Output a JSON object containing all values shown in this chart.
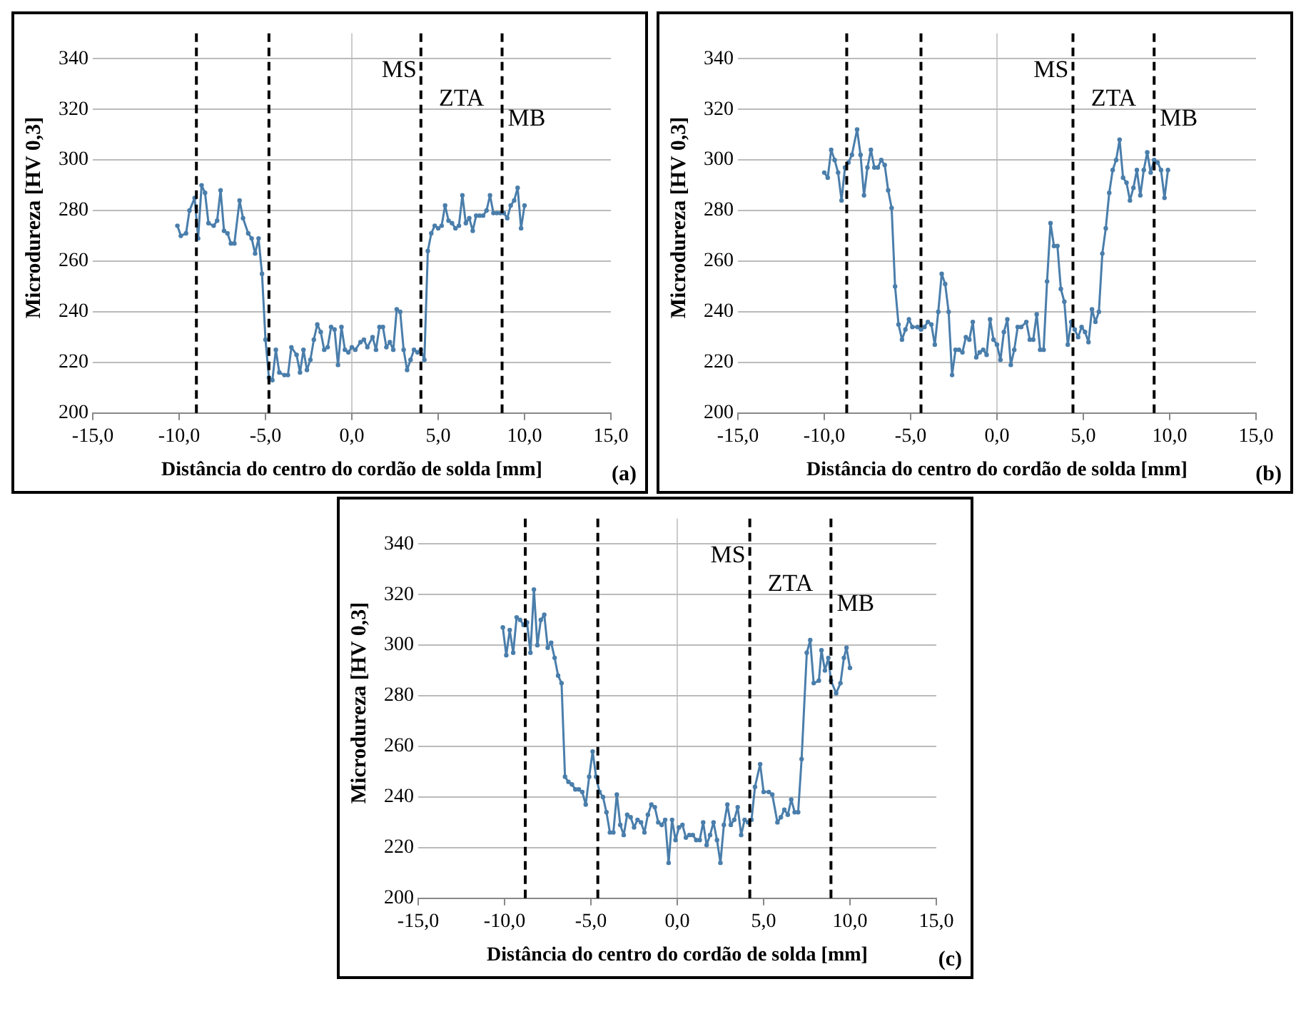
{
  "chart_data": [
    {
      "type": "line",
      "xlabel": "Distância do centro do cordão de solda [mm]",
      "ylabel": "Microdureza [HV 0,3]",
      "xlim": [
        -15,
        15
      ],
      "xticks": [
        {
          "value": -15,
          "label": "-15,0"
        },
        {
          "value": -10,
          "label": "-10,0"
        },
        {
          "value": -5,
          "label": "-5,0"
        },
        {
          "value": 0,
          "label": "0,0"
        },
        {
          "value": 5,
          "label": "5,0"
        },
        {
          "value": 10,
          "label": "10,0"
        },
        {
          "value": 15,
          "label": "15,0"
        }
      ],
      "ylim": [
        200,
        350
      ],
      "yticks": [
        200,
        220,
        240,
        260,
        280,
        300,
        320,
        340
      ],
      "grid": "y",
      "legend": false,
      "marker": "circle",
      "line_style": "solid",
      "ref_lines": [
        {
          "axis": "x",
          "value": -9.0,
          "color": "#000000",
          "line_style": "dashed"
        },
        {
          "axis": "x",
          "value": -4.8,
          "color": "#000000",
          "line_style": "dashed"
        },
        {
          "axis": "x",
          "value": 4.0,
          "color": "#000000",
          "line_style": "dashed"
        },
        {
          "axis": "x",
          "value": 8.7,
          "color": "#000000",
          "line_style": "dashed"
        }
      ],
      "annotations": [
        "MS",
        "ZTA",
        "MB",
        "(a)"
      ],
      "series": [
        {
          "color": "#4a7eab",
          "x": [
            -10.1,
            -9.9,
            -9.6,
            -9.4,
            -9.1,
            -8.9,
            -8.7,
            -8.5,
            -8.3,
            -8.0,
            -7.8,
            -7.6,
            -7.4,
            -7.2,
            -7.0,
            -6.8,
            -6.5,
            -6.3,
            -6.0,
            -5.8,
            -5.6,
            -5.4,
            -5.2,
            -5.0,
            -4.8,
            -4.6,
            -4.4,
            -4.2,
            -3.9,
            -3.7,
            -3.5,
            -3.2,
            -3.0,
            -2.8,
            -2.6,
            -2.4,
            -2.2,
            -2.0,
            -1.8,
            -1.6,
            -1.4,
            -1.2,
            -1.0,
            -0.8,
            -0.6,
            -0.4,
            -0.2,
            0.0,
            0.2,
            0.5,
            0.7,
            0.9,
            1.2,
            1.4,
            1.6,
            1.8,
            2.0,
            2.2,
            2.4,
            2.6,
            2.8,
            3.0,
            3.2,
            3.4,
            3.6,
            3.8,
            4.0,
            4.2,
            4.4,
            4.6,
            4.8,
            5.0,
            5.2,
            5.4,
            5.6,
            5.8,
            6.0,
            6.2,
            6.4,
            6.6,
            6.8,
            7.0,
            7.2,
            7.4,
            7.6,
            7.8,
            8.0,
            8.2,
            8.4,
            8.6,
            8.8,
            9.0,
            9.2,
            9.4,
            9.6,
            9.8,
            10.0
          ],
          "values": [
            274,
            270,
            271,
            280,
            285,
            269,
            290,
            287,
            275,
            274,
            276,
            288,
            272,
            271,
            267,
            267,
            284,
            277,
            271,
            269,
            263,
            269,
            255,
            229,
            214,
            213,
            225,
            216,
            215,
            215,
            226,
            223,
            216,
            225,
            217,
            221,
            229,
            235,
            232,
            225,
            226,
            234,
            233,
            219,
            234,
            225,
            224,
            226,
            225,
            228,
            229,
            226,
            230,
            225,
            234,
            234,
            226,
            228,
            225,
            241,
            240,
            225,
            217,
            221,
            225,
            224,
            225,
            221,
            264,
            271,
            274,
            273,
            274,
            282,
            276,
            275,
            273,
            274,
            286,
            275,
            277,
            272,
            278,
            278,
            278,
            280,
            286,
            279,
            279,
            279,
            279,
            277,
            282,
            284,
            289,
            273,
            282
          ]
        }
      ]
    },
    {
      "type": "line",
      "xlabel": "Distância do centro do cordão de solda [mm]",
      "ylabel": "Microdureza [HV 0,3]",
      "xlim": [
        -15,
        15
      ],
      "xticks": [
        {
          "value": -15,
          "label": "-15,0"
        },
        {
          "value": -10,
          "label": "-10,0"
        },
        {
          "value": -5,
          "label": "-5,0"
        },
        {
          "value": 0,
          "label": "0,0"
        },
        {
          "value": 5,
          "label": "5,0"
        },
        {
          "value": 10,
          "label": "10,0"
        },
        {
          "value": 15,
          "label": "15,0"
        }
      ],
      "ylim": [
        200,
        350
      ],
      "yticks": [
        200,
        220,
        240,
        260,
        280,
        300,
        320,
        340
      ],
      "grid": "y",
      "legend": false,
      "marker": "circle",
      "line_style": "solid",
      "ref_lines": [
        {
          "axis": "x",
          "value": -8.7,
          "color": "#000000",
          "line_style": "dashed"
        },
        {
          "axis": "x",
          "value": -4.4,
          "color": "#000000",
          "line_style": "dashed"
        },
        {
          "axis": "x",
          "value": 4.4,
          "color": "#000000",
          "line_style": "dashed"
        },
        {
          "axis": "x",
          "value": 9.1,
          "color": "#000000",
          "line_style": "dashed"
        }
      ],
      "annotations": [
        "MS",
        "ZTA",
        "MB",
        "(b)"
      ],
      "series": [
        {
          "color": "#4a7eab",
          "x": [
            -10.0,
            -9.8,
            -9.6,
            -9.4,
            -9.2,
            -9.0,
            -8.8,
            -8.6,
            -8.4,
            -8.1,
            -7.9,
            -7.7,
            -7.5,
            -7.3,
            -7.1,
            -6.9,
            -6.7,
            -6.5,
            -6.3,
            -6.1,
            -5.9,
            -5.7,
            -5.5,
            -5.3,
            -5.1,
            -4.9,
            -4.6,
            -4.4,
            -4.2,
            -4.0,
            -3.8,
            -3.6,
            -3.4,
            -3.2,
            -3.0,
            -2.8,
            -2.6,
            -2.4,
            -2.2,
            -2.0,
            -1.8,
            -1.6,
            -1.4,
            -1.2,
            -1.0,
            -0.8,
            -0.6,
            -0.4,
            -0.2,
            0.0,
            0.2,
            0.4,
            0.6,
            0.8,
            1.0,
            1.2,
            1.4,
            1.7,
            1.9,
            2.1,
            2.3,
            2.5,
            2.7,
            2.9,
            3.1,
            3.3,
            3.5,
            3.7,
            3.9,
            4.1,
            4.3,
            4.5,
            4.7,
            4.9,
            5.1,
            5.3,
            5.5,
            5.7,
            5.9,
            6.1,
            6.3,
            6.5,
            6.7,
            6.9,
            7.1,
            7.3,
            7.5,
            7.7,
            7.9,
            8.1,
            8.3,
            8.5,
            8.7,
            8.9,
            9.1,
            9.3,
            9.5,
            9.7,
            9.9
          ],
          "values": [
            295,
            293,
            304,
            300,
            295,
            284,
            297,
            299,
            302,
            312,
            302,
            286,
            297,
            304,
            297,
            297,
            300,
            298,
            288,
            281,
            250,
            235,
            229,
            233,
            237,
            234,
            234,
            233,
            234,
            236,
            235,
            227,
            240,
            255,
            251,
            240,
            215,
            225,
            225,
            224,
            230,
            229,
            236,
            222,
            224,
            225,
            223,
            237,
            229,
            227,
            221,
            232,
            237,
            219,
            225,
            234,
            234,
            236,
            229,
            229,
            239,
            225,
            225,
            252,
            275,
            266,
            266,
            249,
            244,
            227,
            236,
            233,
            230,
            234,
            232,
            228,
            241,
            236,
            240,
            263,
            273,
            287,
            296,
            300,
            308,
            293,
            291,
            284,
            289,
            296,
            286,
            296,
            303,
            295,
            300,
            299,
            296,
            285,
            296
          ]
        }
      ]
    },
    {
      "type": "line",
      "xlabel": "Distância do centro do cordão de solda [mm]",
      "ylabel": "Microdureza [HV 0,3]",
      "xlim": [
        -15,
        15
      ],
      "xticks": [
        {
          "value": -15,
          "label": "-15,0"
        },
        {
          "value": -10,
          "label": "-10,0"
        },
        {
          "value": -5,
          "label": "-5,0"
        },
        {
          "value": 0,
          "label": "0,0"
        },
        {
          "value": 5,
          "label": "5,0"
        },
        {
          "value": 10,
          "label": "10,0"
        },
        {
          "value": 15,
          "label": "15,0"
        }
      ],
      "ylim": [
        200,
        350
      ],
      "yticks": [
        200,
        220,
        240,
        260,
        280,
        300,
        320,
        340
      ],
      "grid": "y",
      "legend": false,
      "marker": "circle",
      "line_style": "solid",
      "ref_lines": [
        {
          "axis": "x",
          "value": -8.8,
          "color": "#000000",
          "line_style": "dashed"
        },
        {
          "axis": "x",
          "value": -4.6,
          "color": "#000000",
          "line_style": "dashed"
        },
        {
          "axis": "x",
          "value": 4.2,
          "color": "#000000",
          "line_style": "dashed"
        },
        {
          "axis": "x",
          "value": 8.9,
          "color": "#000000",
          "line_style": "dashed"
        }
      ],
      "annotations": [
        "MS",
        "ZTA",
        "MB",
        "(c)"
      ],
      "series": [
        {
          "color": "#4a7eab",
          "x": [
            -10.1,
            -9.9,
            -9.7,
            -9.5,
            -9.3,
            -9.1,
            -8.9,
            -8.7,
            -8.5,
            -8.3,
            -8.1,
            -7.9,
            -7.7,
            -7.5,
            -7.3,
            -7.1,
            -6.9,
            -6.7,
            -6.5,
            -6.3,
            -6.1,
            -5.9,
            -5.7,
            -5.5,
            -5.3,
            -5.1,
            -4.9,
            -4.7,
            -4.5,
            -4.3,
            -4.1,
            -3.9,
            -3.7,
            -3.5,
            -3.3,
            -3.1,
            -2.9,
            -2.7,
            -2.5,
            -2.3,
            -2.1,
            -1.9,
            -1.7,
            -1.5,
            -1.3,
            -1.1,
            -0.9,
            -0.7,
            -0.5,
            -0.3,
            -0.1,
            0.1,
            0.3,
            0.5,
            0.7,
            0.9,
            1.1,
            1.3,
            1.5,
            1.7,
            1.9,
            2.1,
            2.3,
            2.5,
            2.7,
            2.9,
            3.1,
            3.3,
            3.5,
            3.7,
            3.9,
            4.1,
            4.3,
            4.5,
            4.8,
            5.0,
            5.3,
            5.5,
            5.8,
            6.0,
            6.2,
            6.4,
            6.6,
            6.8,
            7.0,
            7.2,
            7.5,
            7.7,
            7.9,
            8.2,
            8.35,
            8.55,
            8.75,
            8.9,
            9.2,
            9.45,
            9.65,
            9.8,
            10.0
          ],
          "values": [
            307,
            296,
            306,
            297,
            311,
            310,
            308,
            309,
            297,
            322,
            300,
            310,
            312,
            299,
            301,
            295,
            288,
            285,
            248,
            246,
            245,
            243,
            243,
            242,
            237,
            248,
            258,
            248,
            242,
            240,
            234,
            226,
            226,
            241,
            229,
            225,
            233,
            232,
            228,
            231,
            230,
            226,
            233,
            237,
            236,
            230,
            229,
            231,
            214,
            231,
            223,
            228,
            229,
            224,
            225,
            225,
            223,
            223,
            230,
            221,
            225,
            230,
            223,
            214,
            229,
            237,
            229,
            231,
            236,
            225,
            231,
            230,
            231,
            244,
            253,
            242,
            242,
            241,
            230,
            232,
            235,
            233,
            239,
            234,
            234,
            255,
            297,
            302,
            285,
            286,
            298,
            290,
            295,
            286,
            281,
            285,
            295,
            299,
            291
          ]
        }
      ]
    }
  ]
}
